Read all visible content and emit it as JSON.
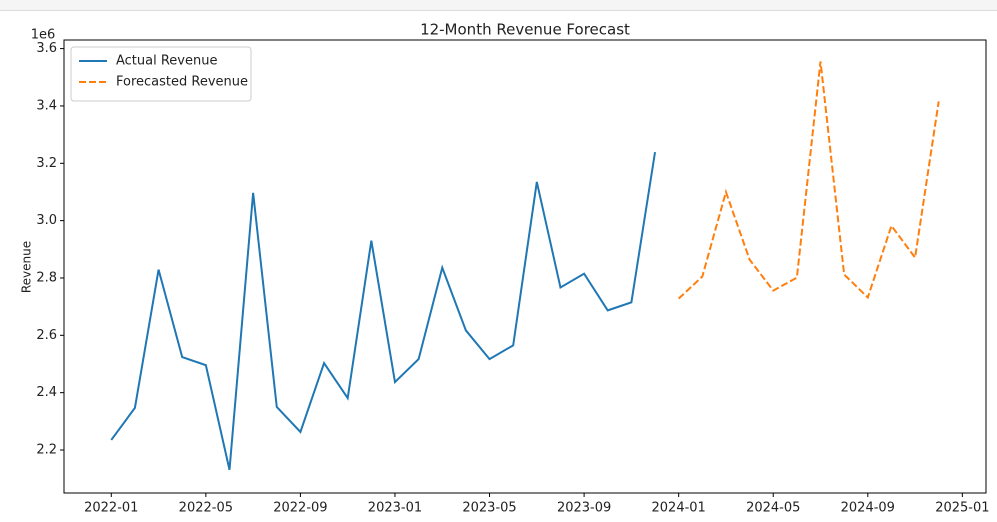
{
  "chart_data": {
    "type": "line",
    "title": "12-Month Revenue Forecast",
    "y_label": "Revenue",
    "y_offset_label": "1e6",
    "x": [
      "2022-01",
      "2022-02",
      "2022-03",
      "2022-04",
      "2022-05",
      "2022-06",
      "2022-07",
      "2022-08",
      "2022-09",
      "2022-10",
      "2022-11",
      "2022-12",
      "2023-01",
      "2023-02",
      "2023-03",
      "2023-04",
      "2023-05",
      "2023-06",
      "2023-07",
      "2023-08",
      "2023-09",
      "2023-10",
      "2023-11",
      "2023-12",
      "2024-01",
      "2024-02",
      "2024-03",
      "2024-04",
      "2024-05",
      "2024-06",
      "2024-07",
      "2024-08",
      "2024-09",
      "2024-10",
      "2024-11",
      "2024-12"
    ],
    "series": [
      {
        "name": "Actual Revenue",
        "color": "#1f77b4",
        "linestyle": "solid",
        "values": [
          2.235,
          2.347,
          2.829,
          2.524,
          2.496,
          2.131,
          3.097,
          2.35,
          2.263,
          2.503,
          2.381,
          2.93,
          2.437,
          2.517,
          2.836,
          2.617,
          2.517,
          2.565,
          3.135,
          2.767,
          2.815,
          2.687,
          2.715,
          3.239,
          null,
          null,
          null,
          null,
          null,
          null,
          null,
          null,
          null,
          null,
          null,
          null
        ]
      },
      {
        "name": "Forecasted Revenue",
        "color": "#ff7f0e",
        "linestyle": "dashed",
        "values": [
          null,
          null,
          null,
          null,
          null,
          null,
          null,
          null,
          null,
          null,
          null,
          null,
          null,
          null,
          null,
          null,
          null,
          null,
          null,
          null,
          null,
          null,
          null,
          null,
          2.728,
          2.805,
          3.1,
          2.864,
          2.756,
          2.801,
          3.555,
          2.812,
          2.732,
          2.982,
          2.871,
          3.416
        ]
      }
    ],
    "xlim": [
      "2021-11",
      "2025-02"
    ],
    "xticks": [
      "2022-01",
      "2022-05",
      "2022-09",
      "2023-01",
      "2023-05",
      "2023-09",
      "2024-01",
      "2024-05",
      "2024-09",
      "2025-01"
    ],
    "ylim": [
      2.05,
      3.63
    ],
    "yticks": [
      2.2,
      2.4,
      2.6,
      2.8,
      {
        "value": 3,
        "label": "3.0"
      },
      3.2,
      3.4,
      3.6
    ],
    "legend": "upper left",
    "grid": false
  }
}
